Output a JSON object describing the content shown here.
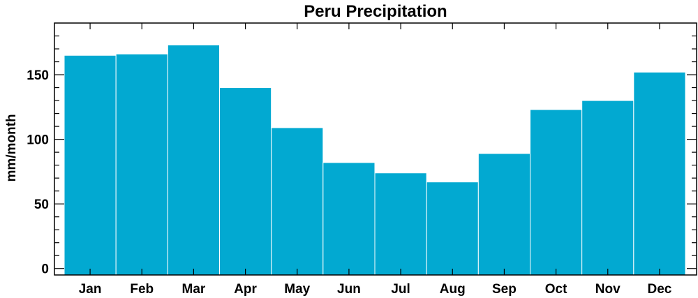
{
  "chart_data": {
    "type": "bar",
    "title": "Peru Precipitation",
    "xlabel": "",
    "ylabel": "mm/month",
    "categories": [
      "Jan",
      "Feb",
      "Mar",
      "Apr",
      "May",
      "Jun",
      "Jul",
      "Aug",
      "Sep",
      "Oct",
      "Nov",
      "Dec"
    ],
    "values": [
      165,
      166,
      173,
      140,
      109,
      82,
      74,
      67,
      89,
      123,
      130,
      152
    ],
    "ylim": [
      -5,
      190
    ],
    "yticks": [
      0,
      50,
      100,
      150
    ],
    "yticks_labels": [
      "0",
      "50",
      "100",
      "150"
    ],
    "grid": false,
    "legend": "none",
    "bar_color": "#02a9d1"
  }
}
